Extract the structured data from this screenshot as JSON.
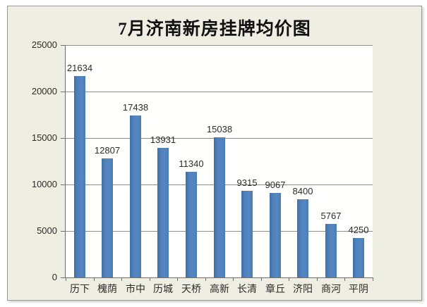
{
  "chart": {
    "frame_background": "#eeeee2",
    "plot_background": "#fffffd",
    "bar_color": "#4f81bd",
    "gridline_color": "#8c8c86",
    "axis_color": "#6f6f68",
    "text_color": "#2b2b28",
    "title_color": "#111111"
  },
  "chart_data": {
    "type": "bar",
    "title": "7月济南新房挂牌均价图",
    "categories": [
      "历下",
      "槐荫",
      "市中",
      "历城",
      "天桥",
      "高新",
      "长清",
      "章丘",
      "济阳",
      "商河",
      "平阴"
    ],
    "values": [
      21634,
      12807,
      17438,
      13931,
      11340,
      15038,
      9315,
      9067,
      8400,
      5767,
      4250
    ],
    "xlabel": "",
    "ylabel": "",
    "ylim": [
      0,
      25000
    ],
    "yticks": [
      0,
      5000,
      10000,
      15000,
      20000,
      25000
    ],
    "grid": true,
    "legend": false,
    "data_labels": true,
    "bar_color": "#4f81bd"
  }
}
